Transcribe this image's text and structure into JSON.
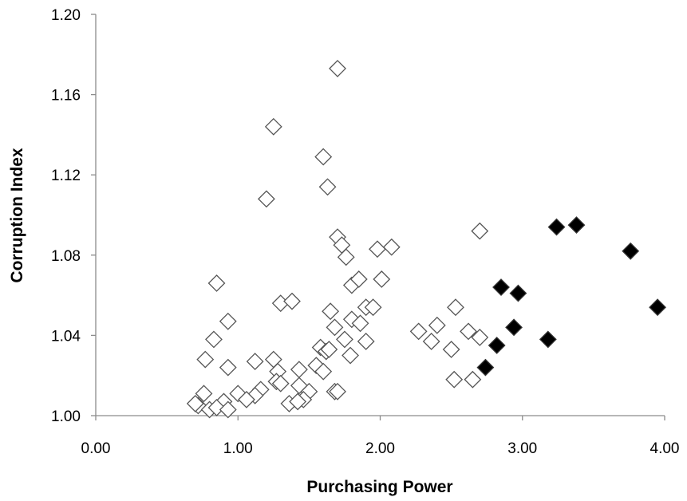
{
  "chart_data": {
    "type": "scatter",
    "title": "",
    "xlabel": "Purchasing Power",
    "ylabel": "Corruption Index",
    "xlim": [
      0,
      4
    ],
    "ylim": [
      1.0,
      1.2
    ],
    "xticks": [
      "0.00",
      "1.00",
      "2.00",
      "3.00",
      "4.00"
    ],
    "yticks": [
      "1.00",
      "1.04",
      "1.08",
      "1.12",
      "1.16",
      "1.20"
    ],
    "grid": false,
    "legend": "none",
    "series": [
      {
        "marker": "diamond-open",
        "color": "#555555",
        "points": [
          [
            1.7,
            1.173
          ],
          [
            1.25,
            1.144
          ],
          [
            1.6,
            1.129
          ],
          [
            1.63,
            1.114
          ],
          [
            1.2,
            1.108
          ],
          [
            2.7,
            1.092
          ],
          [
            1.7,
            1.089
          ],
          [
            1.73,
            1.085
          ],
          [
            1.76,
            1.079
          ],
          [
            1.98,
            1.083
          ],
          [
            2.08,
            1.084
          ],
          [
            0.85,
            1.066
          ],
          [
            1.8,
            1.065
          ],
          [
            1.85,
            1.068
          ],
          [
            2.01,
            1.068
          ],
          [
            1.3,
            1.056
          ],
          [
            1.38,
            1.057
          ],
          [
            1.65,
            1.052
          ],
          [
            1.9,
            1.054
          ],
          [
            1.95,
            1.054
          ],
          [
            2.53,
            1.054
          ],
          [
            0.93,
            1.047
          ],
          [
            1.8,
            1.048
          ],
          [
            1.86,
            1.046
          ],
          [
            2.4,
            1.045
          ],
          [
            1.68,
            1.044
          ],
          [
            2.27,
            1.042
          ],
          [
            2.62,
            1.042
          ],
          [
            0.83,
            1.038
          ],
          [
            1.75,
            1.038
          ],
          [
            2.36,
            1.037
          ],
          [
            1.9,
            1.037
          ],
          [
            2.7,
            1.039
          ],
          [
            1.58,
            1.034
          ],
          [
            1.62,
            1.032
          ],
          [
            1.64,
            1.033
          ],
          [
            2.5,
            1.033
          ],
          [
            1.79,
            1.03
          ],
          [
            0.77,
            1.028
          ],
          [
            1.12,
            1.027
          ],
          [
            1.25,
            1.028
          ],
          [
            1.55,
            1.025
          ],
          [
            0.93,
            1.024
          ],
          [
            1.28,
            1.022
          ],
          [
            1.43,
            1.023
          ],
          [
            1.6,
            1.022
          ],
          [
            1.27,
            1.017
          ],
          [
            1.3,
            1.016
          ],
          [
            1.43,
            1.015
          ],
          [
            2.52,
            1.018
          ],
          [
            2.65,
            1.018
          ],
          [
            1.16,
            1.013
          ],
          [
            1.5,
            1.012
          ],
          [
            1.68,
            1.012
          ],
          [
            0.76,
            1.011
          ],
          [
            1.0,
            1.011
          ],
          [
            1.12,
            1.01
          ],
          [
            1.7,
            1.012
          ],
          [
            1.06,
            1.008
          ],
          [
            0.9,
            1.007
          ],
          [
            1.46,
            1.008
          ],
          [
            0.72,
            1.005
          ],
          [
            1.36,
            1.006
          ],
          [
            0.7,
            1.006
          ],
          [
            0.8,
            1.003
          ],
          [
            0.85,
            1.004
          ],
          [
            0.93,
            1.003
          ],
          [
            1.42,
            1.007
          ]
        ]
      },
      {
        "marker": "diamond-filled",
        "color": "#000000",
        "points": [
          [
            3.24,
            1.094
          ],
          [
            3.38,
            1.095
          ],
          [
            3.76,
            1.082
          ],
          [
            2.85,
            1.064
          ],
          [
            2.97,
            1.061
          ],
          [
            3.95,
            1.054
          ],
          [
            2.94,
            1.044
          ],
          [
            2.82,
            1.035
          ],
          [
            3.18,
            1.038
          ],
          [
            2.74,
            1.024
          ]
        ]
      }
    ]
  }
}
